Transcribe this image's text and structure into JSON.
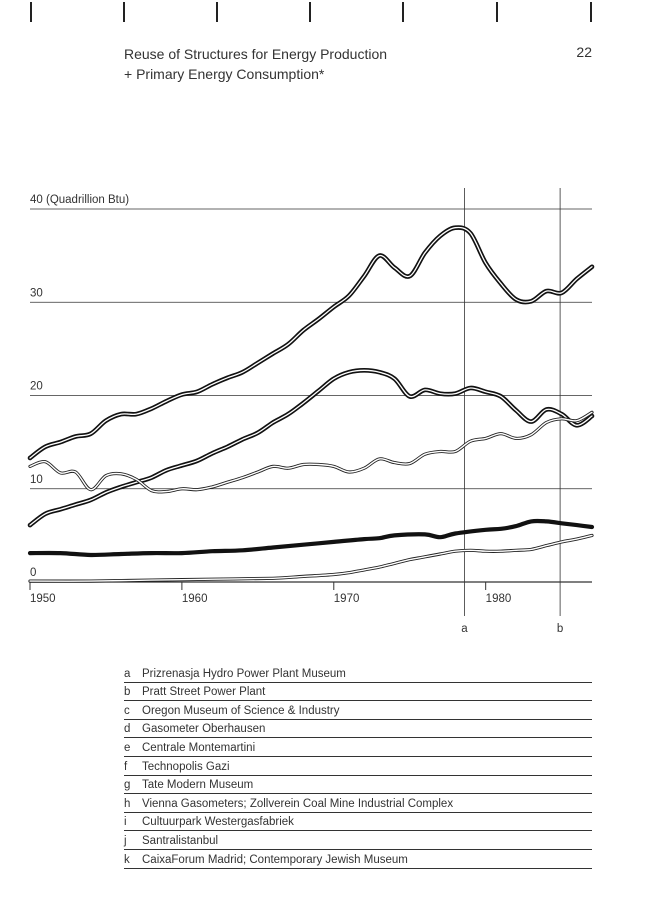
{
  "header": {
    "title_line1": "Reuse of Structures for Energy Production",
    "title_line2": "+ Primary Energy Consumption*",
    "page_number": "22"
  },
  "chart_data": {
    "type": "line",
    "y_unit_label": "40 (Quadrillion Btu)",
    "y_ticks": [
      "0",
      "10",
      "20",
      "30"
    ],
    "x_ticks": [
      "1950",
      "1960",
      "1970",
      "1980"
    ],
    "xlim": [
      1950,
      1987
    ],
    "ylim": [
      0,
      40
    ],
    "grid": true,
    "markers": [
      {
        "label": "a",
        "x": 1978.6
      },
      {
        "label": "b",
        "x": 1984.9
      }
    ],
    "series": [
      {
        "style": "thick-double",
        "values": [
          [
            1950,
            13.3
          ],
          [
            1951,
            14.5
          ],
          [
            1952,
            15
          ],
          [
            1953,
            15.6
          ],
          [
            1954,
            15.9
          ],
          [
            1955,
            17.3
          ],
          [
            1956,
            18
          ],
          [
            1957,
            18
          ],
          [
            1958,
            18.6
          ],
          [
            1959,
            19.4
          ],
          [
            1960,
            20.1
          ],
          [
            1961,
            20.4
          ],
          [
            1962,
            21.2
          ],
          [
            1963,
            21.9
          ],
          [
            1964,
            22.5
          ],
          [
            1965,
            23.5
          ],
          [
            1966,
            24.5
          ],
          [
            1967,
            25.5
          ],
          [
            1968,
            27
          ],
          [
            1969,
            28.2
          ],
          [
            1970,
            29.5
          ],
          [
            1971,
            30.7
          ],
          [
            1972,
            32.8
          ],
          [
            1973,
            35
          ],
          [
            1974,
            33.7
          ],
          [
            1975,
            32.8
          ],
          [
            1976,
            35.3
          ],
          [
            1977,
            37.1
          ],
          [
            1978,
            38
          ],
          [
            1979,
            37.4
          ],
          [
            1980,
            34.2
          ],
          [
            1981,
            32
          ],
          [
            1982,
            30.3
          ],
          [
            1983,
            30.1
          ],
          [
            1984,
            31.2
          ],
          [
            1985,
            31
          ],
          [
            1986,
            32.5
          ],
          [
            1987,
            33.8
          ]
        ]
      },
      {
        "style": "thick-double",
        "values": [
          [
            1950,
            6.1
          ],
          [
            1951,
            7.3
          ],
          [
            1952,
            7.8
          ],
          [
            1953,
            8.3
          ],
          [
            1954,
            8.8
          ],
          [
            1955,
            9.6
          ],
          [
            1956,
            10.2
          ],
          [
            1957,
            10.7
          ],
          [
            1958,
            11.2
          ],
          [
            1959,
            12
          ],
          [
            1960,
            12.5
          ],
          [
            1961,
            13
          ],
          [
            1962,
            13.8
          ],
          [
            1963,
            14.5
          ],
          [
            1964,
            15.3
          ],
          [
            1965,
            16
          ],
          [
            1966,
            17.1
          ],
          [
            1967,
            18
          ],
          [
            1968,
            19.2
          ],
          [
            1969,
            20.5
          ],
          [
            1970,
            21.8
          ],
          [
            1971,
            22.5
          ],
          [
            1972,
            22.7
          ],
          [
            1973,
            22.5
          ],
          [
            1974,
            21.8
          ],
          [
            1975,
            19.9
          ],
          [
            1976,
            20.6
          ],
          [
            1977,
            20.2
          ],
          [
            1978,
            20.2
          ],
          [
            1979,
            20.8
          ],
          [
            1980,
            20.4
          ],
          [
            1981,
            19.9
          ],
          [
            1982,
            18.4
          ],
          [
            1983,
            17.2
          ],
          [
            1984,
            18.5
          ],
          [
            1985,
            18
          ],
          [
            1986,
            16.8
          ],
          [
            1987,
            17.8
          ]
        ]
      },
      {
        "style": "thin-double",
        "values": [
          [
            1950,
            12.4
          ],
          [
            1951,
            12.9
          ],
          [
            1952,
            11.7
          ],
          [
            1953,
            11.8
          ],
          [
            1954,
            9.9
          ],
          [
            1955,
            11.4
          ],
          [
            1956,
            11.6
          ],
          [
            1957,
            11
          ],
          [
            1958,
            9.8
          ],
          [
            1959,
            9.7
          ],
          [
            1960,
            10
          ],
          [
            1961,
            9.9
          ],
          [
            1962,
            10.2
          ],
          [
            1963,
            10.7
          ],
          [
            1964,
            11.2
          ],
          [
            1965,
            11.8
          ],
          [
            1966,
            12.4
          ],
          [
            1967,
            12.2
          ],
          [
            1968,
            12.6
          ],
          [
            1969,
            12.6
          ],
          [
            1970,
            12.4
          ],
          [
            1971,
            11.8
          ],
          [
            1972,
            12.2
          ],
          [
            1973,
            13.2
          ],
          [
            1974,
            12.8
          ],
          [
            1975,
            12.7
          ],
          [
            1976,
            13.7
          ],
          [
            1977,
            14
          ],
          [
            1978,
            14
          ],
          [
            1979,
            15.1
          ],
          [
            1980,
            15.4
          ],
          [
            1981,
            15.9
          ],
          [
            1982,
            15.4
          ],
          [
            1983,
            15.8
          ],
          [
            1984,
            17.1
          ],
          [
            1985,
            17.5
          ],
          [
            1986,
            17.3
          ],
          [
            1987,
            18.2
          ]
        ]
      },
      {
        "style": "thick",
        "values": [
          [
            1950,
            3.1
          ],
          [
            1952,
            3.1
          ],
          [
            1954,
            2.9
          ],
          [
            1956,
            3
          ],
          [
            1958,
            3.1
          ],
          [
            1960,
            3.1
          ],
          [
            1962,
            3.3
          ],
          [
            1964,
            3.4
          ],
          [
            1966,
            3.7
          ],
          [
            1968,
            4
          ],
          [
            1970,
            4.3
          ],
          [
            1972,
            4.6
          ],
          [
            1973,
            4.7
          ],
          [
            1974,
            5
          ],
          [
            1976,
            5.1
          ],
          [
            1977,
            4.8
          ],
          [
            1978,
            5.2
          ],
          [
            1980,
            5.6
          ],
          [
            1981,
            5.7
          ],
          [
            1982,
            6
          ],
          [
            1983,
            6.5
          ],
          [
            1984,
            6.5
          ],
          [
            1985,
            6.3
          ],
          [
            1986,
            6.1
          ],
          [
            1987,
            5.9
          ]
        ]
      },
      {
        "style": "thin-double",
        "values": [
          [
            1950,
            0.1
          ],
          [
            1954,
            0.1
          ],
          [
            1958,
            0.2
          ],
          [
            1962,
            0.3
          ],
          [
            1966,
            0.4
          ],
          [
            1968,
            0.6
          ],
          [
            1970,
            0.8
          ],
          [
            1971,
            1
          ],
          [
            1972,
            1.3
          ],
          [
            1973,
            1.6
          ],
          [
            1974,
            2
          ],
          [
            1975,
            2.4
          ],
          [
            1976,
            2.7
          ],
          [
            1977,
            3
          ],
          [
            1978,
            3.3
          ],
          [
            1979,
            3.4
          ],
          [
            1980,
            3.3
          ],
          [
            1981,
            3.3
          ],
          [
            1982,
            3.4
          ],
          [
            1983,
            3.5
          ],
          [
            1984,
            3.9
          ],
          [
            1985,
            4.3
          ],
          [
            1986,
            4.6
          ],
          [
            1987,
            5
          ]
        ]
      }
    ]
  },
  "legend": [
    {
      "key": "a",
      "label": "Prizrenasja Hydro Power Plant Museum"
    },
    {
      "key": "b",
      "label": "Pratt Street Power Plant"
    },
    {
      "key": "c",
      "label": "Oregon Museum of Science & Industry"
    },
    {
      "key": "d",
      "label": "Gasometer Oberhausen"
    },
    {
      "key": "e",
      "label": "Centrale Montemartini"
    },
    {
      "key": "f",
      "label": "Technopolis Gazi"
    },
    {
      "key": "g",
      "label": "Tate Modern Museum"
    },
    {
      "key": "h",
      "label": "Vienna Gasometers; Zollverein Coal Mine Industrial Complex"
    },
    {
      "key": "i",
      "label": "Cultuurpark Westergasfabriek"
    },
    {
      "key": "j",
      "label": "Santralistanbul"
    },
    {
      "key": "k",
      "label": "CaixaForum Madrid; Contemporary Jewish Museum"
    }
  ]
}
